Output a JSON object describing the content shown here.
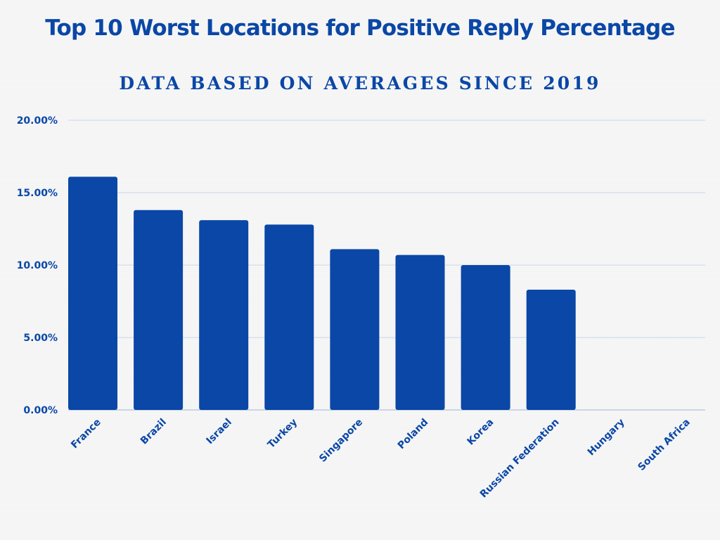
{
  "chart_data": {
    "type": "bar",
    "title": "Top 10 Worst Locations for Positive Reply Percentage",
    "subtitle": "DATA BASED ON AVERAGES SINCE 2019",
    "xlabel": "",
    "ylabel": "",
    "categories": [
      "France",
      "Brazil",
      "Israel",
      "Turkey",
      "Singapore",
      "Poland",
      "Korea",
      "Russian Federation",
      "Hungary",
      "South Africa"
    ],
    "values": [
      16.1,
      13.8,
      13.1,
      12.8,
      11.1,
      10.7,
      10.0,
      8.3,
      0,
      0
    ],
    "ylim": [
      0,
      20
    ],
    "yticks": [
      0,
      5,
      10,
      15,
      20
    ],
    "ytick_labels": [
      "0.00%",
      "5.00%",
      "10.00%",
      "15.00%",
      "20.00%"
    ],
    "grid": true,
    "legend": "none",
    "bar_color": "#0a47a6"
  }
}
